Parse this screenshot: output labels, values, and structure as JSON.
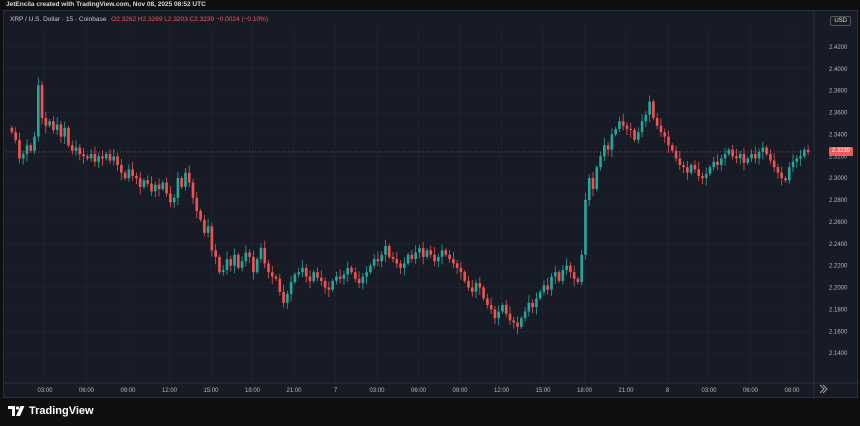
{
  "credit": "JetEncila created with TradingView.com, Nov 08, 2025 08:52 UTC",
  "legend": {
    "title": "XRP / U.S. Dollar · 15 · Coinbase",
    "ohlc": "O2.3262 H2.3269 L2.3203 C2.3239 −0.0024 (−0.10%)"
  },
  "currency": "USD",
  "current_price": "2.3239",
  "brand": "TradingView",
  "colors": {
    "up": "#26a69a",
    "down": "#ef5350",
    "background": "#161b26",
    "grid": "#222733",
    "price_line": "#ef5350"
  },
  "chart_data": {
    "type": "candlestick",
    "ylim": [
      2.12,
      2.44
    ],
    "y_ticks": [
      "2.1400",
      "2.1600",
      "2.1800",
      "2.2000",
      "2.2200",
      "2.2400",
      "2.2600",
      "2.2800",
      "2.3000",
      "2.3200",
      "2.3400",
      "2.3600",
      "2.3800",
      "2.4000",
      "2.4200"
    ],
    "x_ticks": [
      "03:00",
      "06:00",
      "09:00",
      "12:00",
      "15:00",
      "18:00",
      "21:00",
      "7",
      "03:00",
      "06:00",
      "09:00",
      "12:00",
      "15:00",
      "18:00",
      "21:00",
      "8",
      "03:00",
      "06:00",
      "08:00"
    ],
    "last_price": 2.3239,
    "close": [
      2.342,
      2.335,
      2.318,
      2.322,
      2.33,
      2.325,
      2.338,
      2.385,
      2.355,
      2.348,
      2.352,
      2.344,
      2.349,
      2.338,
      2.346,
      2.33,
      2.325,
      2.328,
      2.322,
      2.32,
      2.318,
      2.322,
      2.315,
      2.32,
      2.318,
      2.322,
      2.316,
      2.32,
      2.312,
      2.305,
      2.3,
      2.308,
      2.302,
      2.3,
      2.292,
      2.298,
      2.295,
      2.288,
      2.294,
      2.29,
      2.296,
      2.286,
      2.278,
      2.282,
      2.3,
      2.292,
      2.305,
      2.296,
      2.282,
      2.27,
      2.262,
      2.25,
      2.256,
      2.234,
      2.228,
      2.214,
      2.216,
      2.226,
      2.22,
      2.23,
      2.218,
      2.224,
      2.232,
      2.228,
      2.214,
      2.226,
      2.236,
      2.222,
      2.214,
      2.21,
      2.208,
      2.196,
      2.186,
      2.194,
      2.205,
      2.212,
      2.214,
      2.218,
      2.21,
      2.206,
      2.214,
      2.209,
      2.206,
      2.2,
      2.198,
      2.206,
      2.21,
      2.208,
      2.212,
      2.218,
      2.214,
      2.208,
      2.204,
      2.21,
      2.214,
      2.22,
      2.226,
      2.224,
      2.23,
      2.238,
      2.228,
      2.226,
      2.222,
      2.218,
      2.222,
      2.23,
      2.226,
      2.232,
      2.236,
      2.228,
      2.234,
      2.23,
      2.224,
      2.228,
      2.234,
      2.23,
      2.226,
      2.222,
      2.218,
      2.214,
      2.206,
      2.2,
      2.196,
      2.204,
      2.2,
      2.19,
      2.184,
      2.18,
      2.172,
      2.178,
      2.184,
      2.176,
      2.17,
      2.168,
      2.164,
      2.172,
      2.178,
      2.186,
      2.182,
      2.19,
      2.196,
      2.202,
      2.198,
      2.21,
      2.214,
      2.206,
      2.216,
      2.22,
      2.214,
      2.208,
      2.205,
      2.23,
      2.28,
      2.3,
      2.29,
      2.31,
      2.32,
      2.33,
      2.326,
      2.34,
      2.345,
      2.352,
      2.348,
      2.345,
      2.344,
      2.335,
      2.342,
      2.352,
      2.358,
      2.37,
      2.355,
      2.348,
      2.342,
      2.338,
      2.33,
      2.325,
      2.318,
      2.312,
      2.31,
      2.305,
      2.312,
      2.308,
      2.302,
      2.3,
      2.304,
      2.31,
      2.315,
      2.312,
      2.318,
      2.322,
      2.326,
      2.32,
      2.318,
      2.322,
      2.314,
      2.318,
      2.322,
      2.318,
      2.324,
      2.328,
      2.322,
      2.316,
      2.31,
      2.305,
      2.3,
      2.298,
      2.31,
      2.315,
      2.318,
      2.32,
      2.326,
      2.324
    ]
  }
}
